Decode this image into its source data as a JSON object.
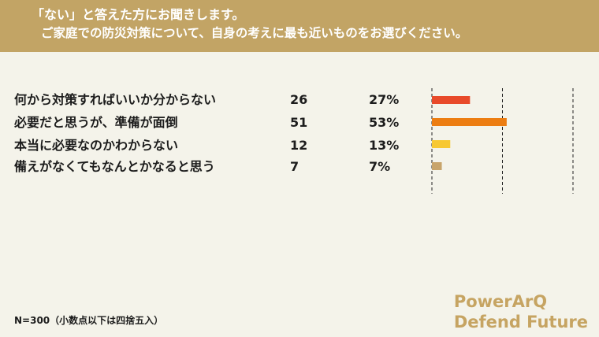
{
  "header": {
    "line1": "「ない」と答えた方にお聞きします。",
    "line2": "ご家庭での防災対策について、自身の考えに最も近いものをお選びください。"
  },
  "chart_data": {
    "type": "bar",
    "orientation": "horizontal",
    "categories": [
      "何から対策すればいいか分からない",
      "必要だと思うが、準備が面倒",
      "本当に必要なのかわからない",
      "備えがなくてもなんとかなると思う"
    ],
    "counts": [
      "26",
      "51",
      "12",
      "7"
    ],
    "percent_labels": [
      "27%",
      "53%",
      "13%",
      "7%"
    ],
    "values": [
      27,
      53,
      13,
      7
    ],
    "xlim": [
      0,
      100
    ],
    "gridlines": [
      0,
      50,
      100
    ],
    "colors": [
      "#e84a2a",
      "#ec7d12",
      "#f7c833",
      "#c8a46b"
    ]
  },
  "footer": {
    "note": "N=300（小数点以下は四捨五入）",
    "brand_line1": "PowerArQ",
    "brand_line2": "Defend Future"
  }
}
